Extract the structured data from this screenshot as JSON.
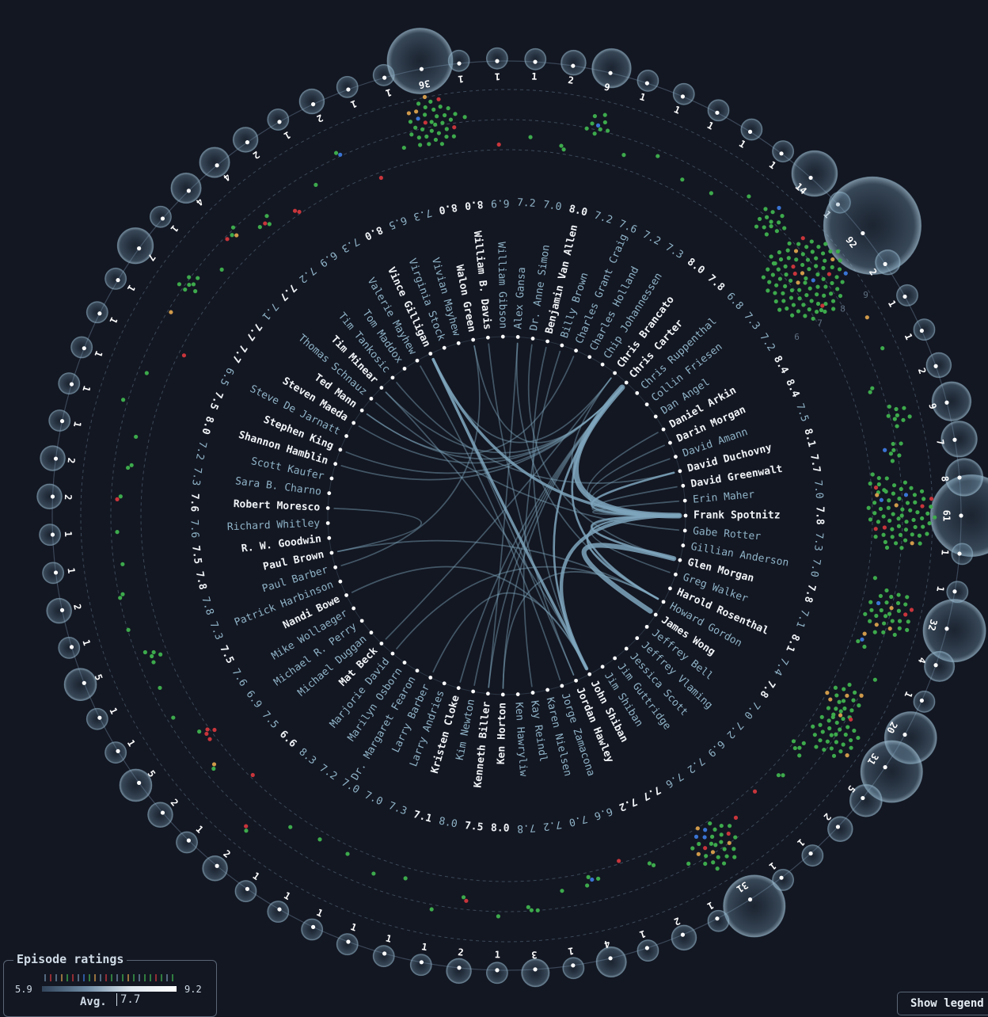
{
  "chart_data": {
    "type": "radial-network",
    "people": [
      {
        "name": "Frank Spotnitz",
        "rating": "7.8",
        "count": "61",
        "bright": true
      },
      {
        "name": "Gabe Rotter",
        "rating": "7.3",
        "count": "1",
        "bright": false
      },
      {
        "name": "Gillian Anderson",
        "rating": "7.0",
        "count": "1",
        "bright": false
      },
      {
        "name": "Glen Morgan",
        "rating": "7.8",
        "count": "32",
        "bright": true
      },
      {
        "name": "Greg Walker",
        "rating": "7.1",
        "count": "4",
        "bright": false
      },
      {
        "name": "Harold Rosenthal",
        "rating": "8.1",
        "count": "1",
        "bright": true
      },
      {
        "name": "Howard Gordon",
        "rating": "7.4",
        "count": "20",
        "bright": false
      },
      {
        "name": "James Wong",
        "rating": "7.8",
        "count": "31",
        "bright": true
      },
      {
        "name": "Jeffrey Bell",
        "rating": "7.0",
        "count": "5",
        "bright": false
      },
      {
        "name": "Jeffrey Vlaming",
        "rating": "7.2",
        "count": "2",
        "bright": false
      },
      {
        "name": "Jessica Scott",
        "rating": "6.9",
        "count": "1",
        "bright": false
      },
      {
        "name": "Jim Guttridge",
        "rating": "7.2",
        "count": "1",
        "bright": false
      },
      {
        "name": "Jim Shiban",
        "rating": "7.6",
        "count": "31",
        "bright": false
      },
      {
        "name": "John Shiban",
        "rating": "7.7",
        "count": "1",
        "bright": true
      },
      {
        "name": "Jordan Hawley",
        "rating": "7.2",
        "count": "2",
        "bright": true
      },
      {
        "name": "Jorge Zamacona",
        "rating": "6.6",
        "count": "1",
        "bright": false
      },
      {
        "name": "Karen Nielsen",
        "rating": "7.0",
        "count": "4",
        "bright": false
      },
      {
        "name": "Kay Reindl",
        "rating": "7.2",
        "count": "1",
        "bright": false
      },
      {
        "name": "Ken Hawryliw",
        "rating": "7.8",
        "count": "3",
        "bright": false
      },
      {
        "name": "Ken Horton",
        "rating": "8.0",
        "count": "1",
        "bright": true
      },
      {
        "name": "Kenneth Biller",
        "rating": "7.5",
        "count": "2",
        "bright": true
      },
      {
        "name": "Kim Newton",
        "rating": "8.0",
        "count": "1",
        "bright": false
      },
      {
        "name": "Kristen Cloke",
        "rating": "7.1",
        "count": "1",
        "bright": true
      },
      {
        "name": "Larry Andries",
        "rating": "7.3",
        "count": "1",
        "bright": false
      },
      {
        "name": "Larry Barber",
        "rating": "7.0",
        "count": "1",
        "bright": false
      },
      {
        "name": "Dr. Margaret Fearon",
        "rating": "7.0",
        "count": "1",
        "bright": false
      },
      {
        "name": "Marilyn Osborn",
        "rating": "7.2",
        "count": "1",
        "bright": false
      },
      {
        "name": "Marjorie David",
        "rating": "8.3",
        "count": "2",
        "bright": false
      },
      {
        "name": "Mat Beck",
        "rating": "6.6",
        "count": "1",
        "bright": true
      },
      {
        "name": "Michael Duggan",
        "rating": "7.5",
        "count": "2",
        "bright": false
      },
      {
        "name": "Michael R. Perry",
        "rating": "6.9",
        "count": "5",
        "bright": false
      },
      {
        "name": "Mike Wollaeger",
        "rating": "7.6",
        "count": "1",
        "bright": false
      },
      {
        "name": "Nandi Bowe",
        "rating": "7.5",
        "count": "1",
        "bright": true
      },
      {
        "name": "Patrick Harbinson",
        "rating": "7.3",
        "count": "5",
        "bright": false
      },
      {
        "name": "Paul Barber",
        "rating": "7.8",
        "count": "1",
        "bright": false
      },
      {
        "name": "Paul Brown",
        "rating": "7.8",
        "count": "2",
        "bright": true
      },
      {
        "name": "R. W. Goodwin",
        "rating": "7.5",
        "count": "1",
        "bright": true
      },
      {
        "name": "Richard Whitley",
        "rating": "7.6",
        "count": "1",
        "bright": false
      },
      {
        "name": "Robert Moresco",
        "rating": "7.6",
        "count": "2",
        "bright": true
      },
      {
        "name": "Sara B. Charno",
        "rating": "7.3",
        "count": "2",
        "bright": false
      },
      {
        "name": "Scott Kaufer",
        "rating": "7.2",
        "count": "1",
        "bright": false
      },
      {
        "name": "Shannon Hamblin",
        "rating": "8.0",
        "count": "1",
        "bright": true
      },
      {
        "name": "Stephen King",
        "rating": "7.5",
        "count": "1",
        "bright": true
      },
      {
        "name": "Steve De Jarnatt",
        "rating": "6.5",
        "count": "1",
        "bright": false
      },
      {
        "name": "Steven Maeda",
        "rating": "7.7",
        "count": "1",
        "bright": true
      },
      {
        "name": "Ted Mann",
        "rating": "7.7",
        "count": "7",
        "bright": true
      },
      {
        "name": "Thomas Schnauz",
        "rating": "7.1",
        "count": "1",
        "bright": false
      },
      {
        "name": "Tim Minear",
        "rating": "7.7",
        "count": "4",
        "bright": true
      },
      {
        "name": "Tim Tankosic",
        "rating": "7.2",
        "count": "4",
        "bright": false
      },
      {
        "name": "Tom Maddox",
        "rating": "6.9",
        "count": "2",
        "bright": false
      },
      {
        "name": "Valerie Mayhew",
        "rating": "7.3",
        "count": "1",
        "bright": false
      },
      {
        "name": "Vince Gilligan",
        "rating": "8.0",
        "count": "2",
        "bright": true
      },
      {
        "name": "Virginia Stock",
        "rating": "6.5",
        "count": "1",
        "bright": false
      },
      {
        "name": "Vivian Mayhew",
        "rating": "7.3",
        "count": "1",
        "bright": false
      },
      {
        "name": "Walon Green",
        "rating": "8.0",
        "count": "36",
        "bright": true
      },
      {
        "name": "William B. Davis",
        "rating": "8.0",
        "count": "1",
        "bright": true
      },
      {
        "name": "William Gibson",
        "rating": "6.9",
        "count": "1",
        "bright": false
      },
      {
        "name": "Alex Gansa",
        "rating": "7.2",
        "count": "1",
        "bright": false
      },
      {
        "name": "Dr. Anne Simon",
        "rating": "7.0",
        "count": "2",
        "bright": false
      },
      {
        "name": "Benjamin Van Allen",
        "rating": "8.0",
        "count": "9",
        "bright": true
      },
      {
        "name": "Billy Brown",
        "rating": "7.2",
        "count": "1",
        "bright": false
      },
      {
        "name": "Charles Grant Craig",
        "rating": "7.6",
        "count": "1",
        "bright": false
      },
      {
        "name": "Charles Holland",
        "rating": "7.2",
        "count": "1",
        "bright": false
      },
      {
        "name": "Chip Johannessen",
        "rating": "7.3",
        "count": "1",
        "bright": false
      },
      {
        "name": "Chris Brancato",
        "rating": "8.0",
        "count": "1",
        "bright": true
      },
      {
        "name": "Chris Carter",
        "rating": "7.8",
        "count": "14",
        "bright": true
      },
      {
        "name": "Chris Ruppenthal",
        "rating": "6.8",
        "count": "1",
        "bright": false
      },
      {
        "name": "Collin Friesen",
        "rating": "7.3",
        "count": "92",
        "bright": false
      },
      {
        "name": "Dan Angel",
        "rating": "7.2",
        "count": "2",
        "bright": false
      },
      {
        "name": "Daniel Arkin",
        "rating": "8.4",
        "count": "1",
        "bright": true
      },
      {
        "name": "Darin Morgan",
        "rating": "8.4",
        "count": "1",
        "bright": true
      },
      {
        "name": "David Amann",
        "rating": "7.5",
        "count": "2",
        "bright": false
      },
      {
        "name": "David Duchovny",
        "rating": "8.1",
        "count": "9",
        "bright": true
      },
      {
        "name": "David Greenwalt",
        "rating": "7.7",
        "count": "7",
        "bright": true
      },
      {
        "name": "Erin Maher",
        "rating": "7.0",
        "count": "8",
        "bright": false
      }
    ],
    "links": [
      {
        "source": "Frank Spotnitz",
        "target": "Chris Carter",
        "weight": 7
      },
      {
        "source": "Frank Spotnitz",
        "target": "Vince Gilligan",
        "weight": 3
      },
      {
        "source": "Frank Spotnitz",
        "target": "John Shiban",
        "weight": 4
      },
      {
        "source": "Frank Spotnitz",
        "target": "David Duchovny",
        "weight": 2
      },
      {
        "source": "Frank Spotnitz",
        "target": "Chris Brancato",
        "weight": 1
      },
      {
        "source": "Frank Spotnitz",
        "target": "Daniel Arkin",
        "weight": 1
      },
      {
        "source": "Frank Spotnitz",
        "target": "Darin Morgan",
        "weight": 1
      },
      {
        "source": "Frank Spotnitz",
        "target": "David Amann",
        "weight": 1
      },
      {
        "source": "Frank Spotnitz",
        "target": "David Greenwalt",
        "weight": 1
      },
      {
        "source": "Frank Spotnitz",
        "target": "Erin Maher",
        "weight": 1
      },
      {
        "source": "Frank Spotnitz",
        "target": "Glen Morgan",
        "weight": 2
      },
      {
        "source": "Frank Spotnitz",
        "target": "Howard Gordon",
        "weight": 2
      },
      {
        "source": "Frank Spotnitz",
        "target": "Greg Walker",
        "weight": 1
      },
      {
        "source": "Glen Morgan",
        "target": "James Wong",
        "weight": 6
      },
      {
        "source": "Vince Gilligan",
        "target": "John Shiban",
        "weight": 3
      },
      {
        "source": "Chris Carter",
        "target": "John Shiban",
        "weight": 2
      },
      {
        "source": "Chris Carter",
        "target": "Howard Gordon",
        "weight": 2
      },
      {
        "source": "Chris Carter",
        "target": "Steven Maeda",
        "weight": 1
      },
      {
        "source": "Chris Carter",
        "target": "Kenneth Biller",
        "weight": 1
      },
      {
        "source": "Chris Carter",
        "target": "Ken Horton",
        "weight": 1
      },
      {
        "source": "Chris Carter",
        "target": "Walon Green",
        "weight": 1
      },
      {
        "source": "Chris Carter",
        "target": "Tim Minear",
        "weight": 1
      },
      {
        "source": "Chris Carter",
        "target": "Ted Mann",
        "weight": 1
      },
      {
        "source": "Chris Carter",
        "target": "Shannon Hamblin",
        "weight": 1
      },
      {
        "source": "Chris Carter",
        "target": "Kristen Cloke",
        "weight": 1
      },
      {
        "source": "Howard Gordon",
        "target": "Marjorie David",
        "weight": 1
      },
      {
        "source": "Howard Gordon",
        "target": "Ken Horton",
        "weight": 1
      },
      {
        "source": "Howard Gordon",
        "target": "Paul Brown",
        "weight": 1
      },
      {
        "source": "John Shiban",
        "target": "Larry Barber",
        "weight": 1
      },
      {
        "source": "John Shiban",
        "target": "Nandi Bowe",
        "weight": 1
      },
      {
        "source": "John Shiban",
        "target": "Benjamin Van Allen",
        "weight": 1
      },
      {
        "source": "John Shiban",
        "target": "Tim Minear",
        "weight": 1
      },
      {
        "source": "Vince Gilligan",
        "target": "Jordan Hawley",
        "weight": 1
      },
      {
        "source": "Vince Gilligan",
        "target": "Chris Brancato",
        "weight": 1
      },
      {
        "source": "Walon Green",
        "target": "Paul Barber",
        "weight": 1
      },
      {
        "source": "Alex Gansa",
        "target": "Kenneth Biller",
        "weight": 1
      },
      {
        "source": "Alex Gansa",
        "target": "Howard Gordon",
        "weight": 1
      },
      {
        "source": "Dr. Anne Simon",
        "target": "Glen Morgan",
        "weight": 1
      },
      {
        "source": "William B. Davis",
        "target": "Jordan Hawley",
        "weight": 1
      },
      {
        "source": "Stephen King",
        "target": "Chris Carter",
        "weight": 1
      },
      {
        "source": "Robert Moresco",
        "target": "Paul Brown",
        "weight": 1
      },
      {
        "source": "Mat Beck",
        "target": "Chris Brancato",
        "weight": 1
      },
      {
        "source": "Kim Newton",
        "target": "Chris Carter",
        "weight": 1
      },
      {
        "source": "Billy Brown",
        "target": "Kay Reindl",
        "weight": 1
      },
      {
        "source": "Charles Grant Craig",
        "target": "Ted Mann",
        "weight": 1
      },
      {
        "source": "Tim Tankosic",
        "target": "David Duchovny",
        "weight": 1
      },
      {
        "source": "Valerie Mayhew",
        "target": "Jorge Zamacona",
        "weight": 1
      },
      {
        "source": "Thomas Schnauz",
        "target": "Gabe Rotter",
        "weight": 1
      }
    ],
    "rating_min": "5.9",
    "rating_max": "9.2",
    "average_label": "Avg.",
    "average_value": "7.7",
    "gauge_labels": [
      "6",
      "7",
      "8",
      "9"
    ],
    "dot_colors": {
      "high": "#3daa4c",
      "low": "#c8353b",
      "mid": "#d09a4a",
      "other": "#3a74d4"
    },
    "link_color": "#7fa6bd",
    "bright_color": "#f0f3f6",
    "dim_color": "#8fb3c7"
  },
  "legend": {
    "title": "Episode ratings",
    "min": "5.9",
    "max": "9.2",
    "avg_label": "Avg.",
    "avg_value": "7.7"
  },
  "toggle_button": {
    "label": "Show legend"
  }
}
